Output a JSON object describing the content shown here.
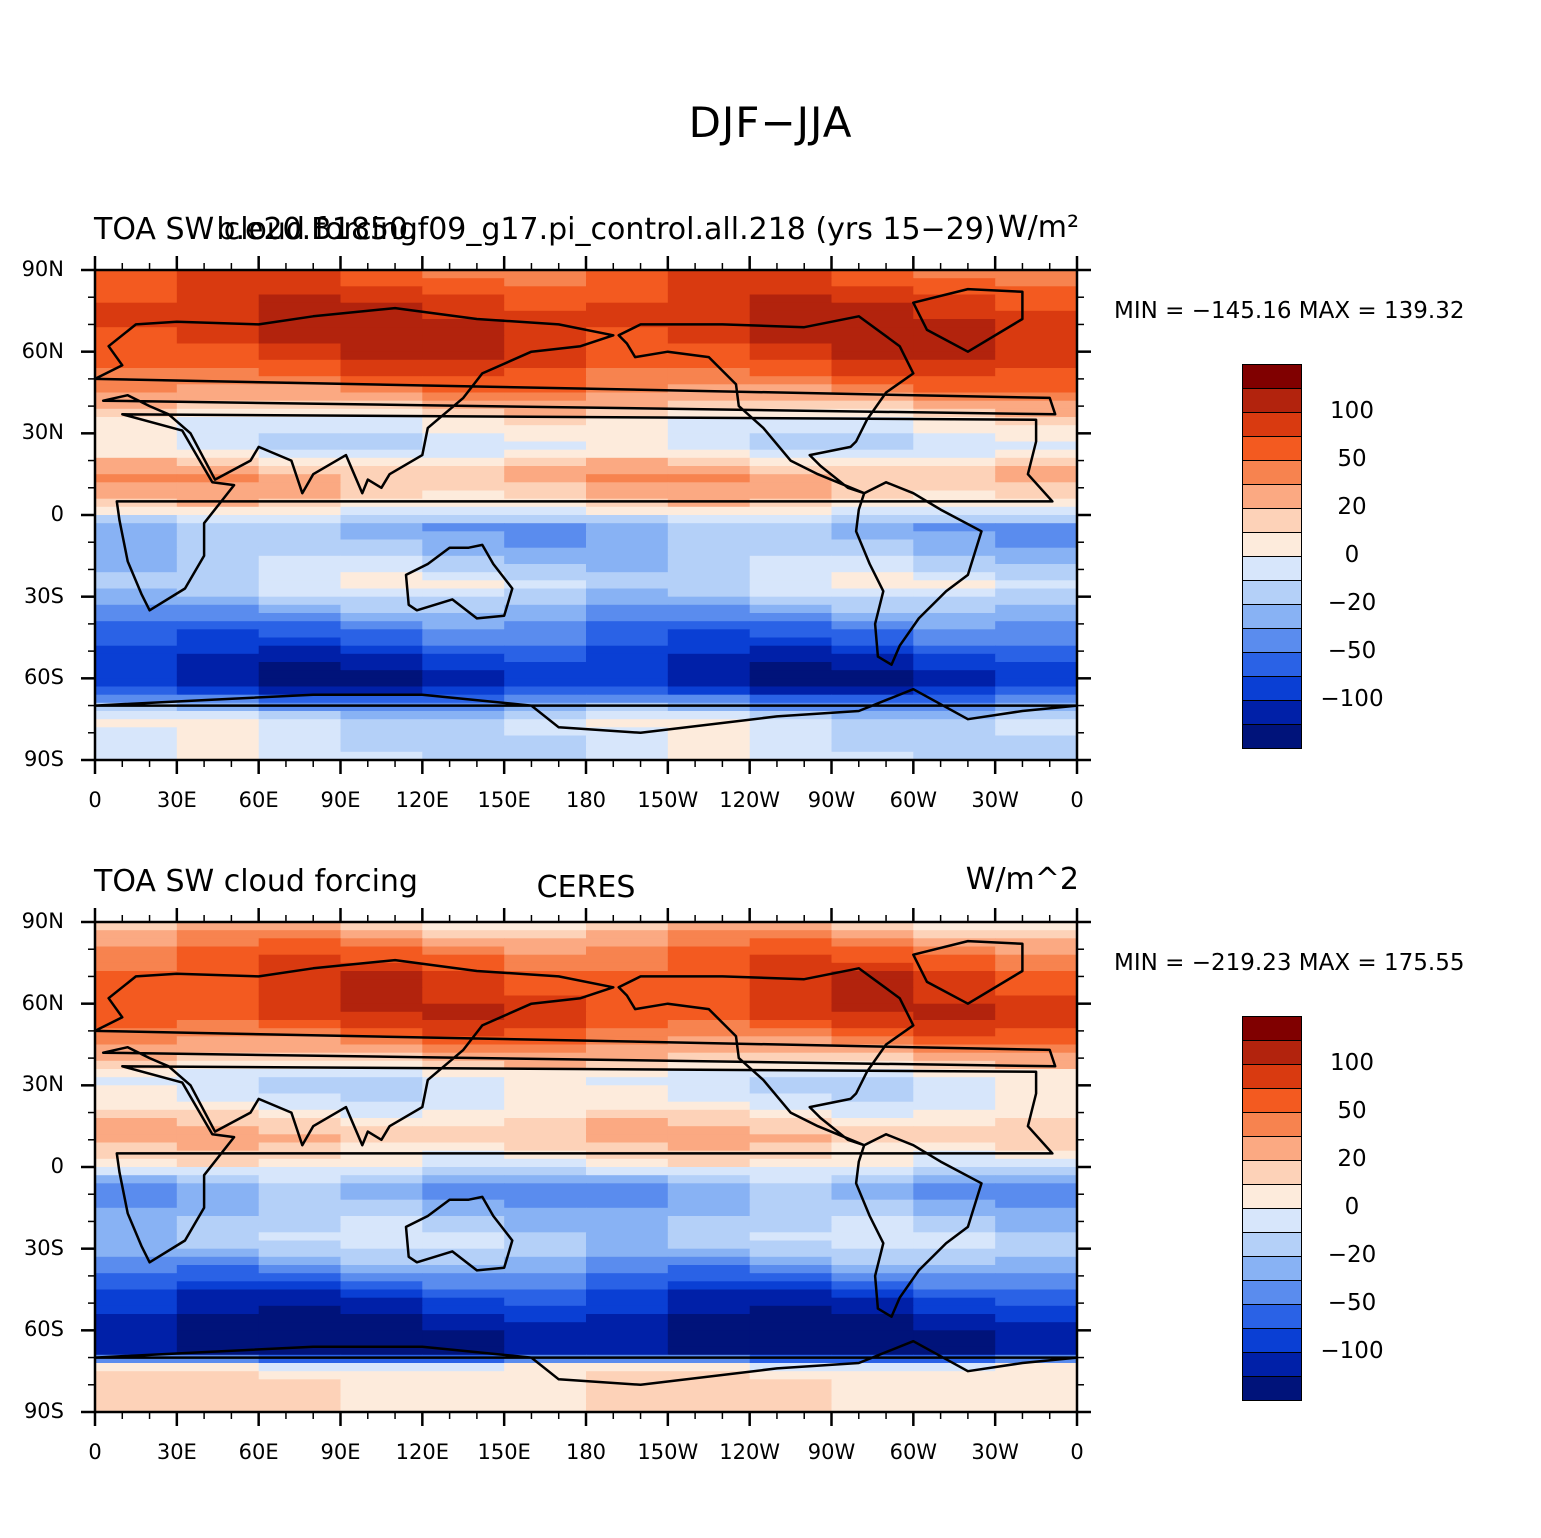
{
  "page_title": "DJF−JJA",
  "lat_labels": [
    "90N",
    "60N",
    "30N",
    "0",
    "30S",
    "60S",
    "90S"
  ],
  "lon_labels": [
    "0",
    "30E",
    "60E",
    "90E",
    "120E",
    "150E",
    "180",
    "150W",
    "120W",
    "90W",
    "60W",
    "30W",
    "0"
  ],
  "colorbar_labels": [
    "100",
    "50",
    "20",
    "0",
    "−20",
    "−50",
    "−100"
  ],
  "colorbar_colors": [
    "#800000",
    "#b2230d",
    "#d93a10",
    "#f35a20",
    "#f7834f",
    "#fba982",
    "#fdd2b8",
    "#fdebdc",
    "#d7e6fb",
    "#b4d0f8",
    "#88b2f4",
    "#5a8cee",
    "#2a62e6",
    "#0a3fd4",
    "#0020a8",
    "#00137a"
  ],
  "panels": [
    {
      "left_title": "TOA SW cloud forcing",
      "center_title": "b.e20.B1850.f09_g17.pi_control.all.218 (yrs 15−29)",
      "right_title": "W/m²",
      "minmax": "MIN = −145.16 MAX = 139.32"
    },
    {
      "left_title": "TOA SW cloud forcing",
      "center_title": "CERES",
      "right_title": "W/m^2",
      "minmax": "MIN = −219.23 MAX = 175.55"
    }
  ]
}
